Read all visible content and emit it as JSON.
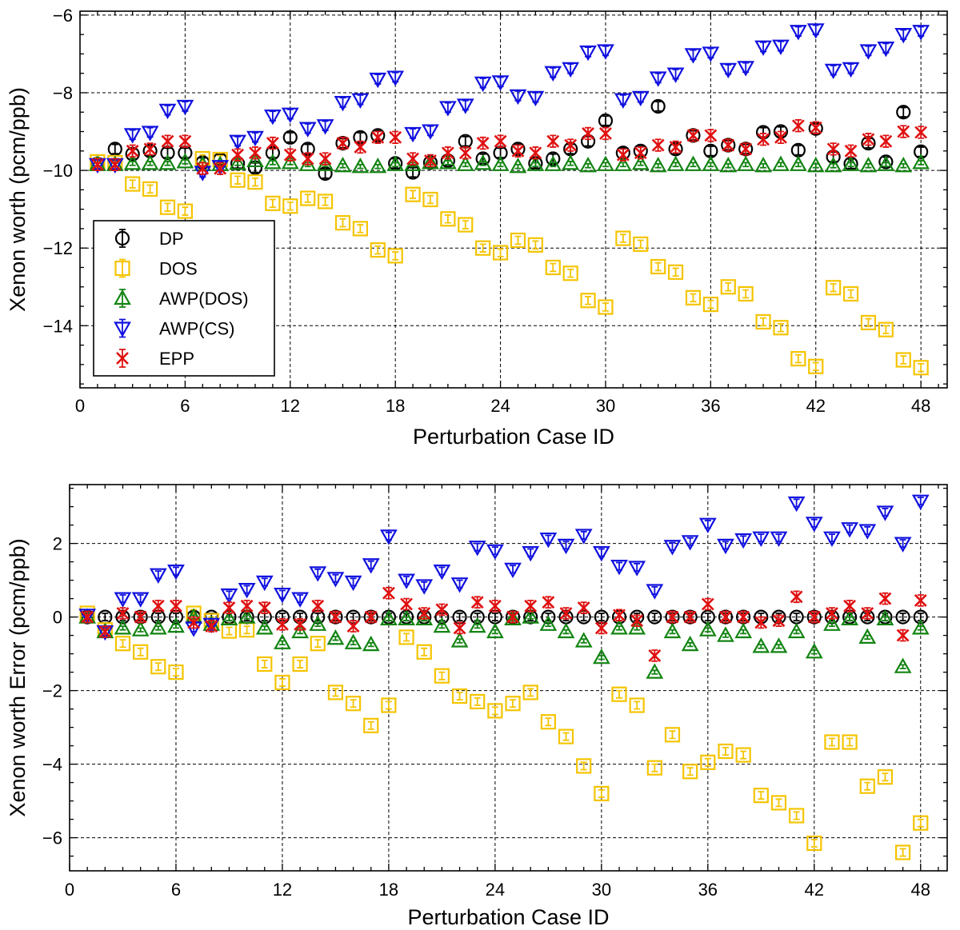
{
  "colors": {
    "DP": "#000000",
    "DOS": "#F5C400",
    "AWP(DOS)": "#128412",
    "AWP(CS)": "#1010E0",
    "EPP": "#E01010"
  },
  "chart_data": [
    {
      "type": "scatter",
      "xlabel": "Perturbation Case ID",
      "ylabel": "Xenon worth (pcm/ppb)",
      "xlim": [
        0,
        49.5
      ],
      "ylim": [
        -15.6,
        -5.9
      ],
      "xticks": [
        0,
        6,
        12,
        18,
        24,
        30,
        36,
        42,
        48
      ],
      "xtick_labels": [
        "0",
        "6",
        "12",
        "18",
        "24",
        "30",
        "36",
        "42",
        "48"
      ],
      "yticks": [
        -14,
        -12,
        -10,
        -8,
        -6
      ],
      "ytick_labels": [
        "−14",
        "−12",
        "−10",
        "−8",
        "−6"
      ],
      "grid": true,
      "legend_position": "lower-left",
      "x": [
        1,
        2,
        3,
        4,
        5,
        6,
        7,
        8,
        9,
        10,
        11,
        12,
        13,
        14,
        15,
        16,
        17,
        18,
        19,
        20,
        21,
        22,
        23,
        24,
        25,
        26,
        27,
        28,
        29,
        30,
        31,
        32,
        33,
        34,
        35,
        36,
        37,
        38,
        39,
        40,
        41,
        42,
        43,
        44,
        45,
        46,
        47,
        48
      ],
      "series": [
        {
          "name": "DP",
          "marker": "circle",
          "error": 0.12,
          "values": [
            -9.83,
            -9.45,
            -9.58,
            -9.5,
            -9.55,
            -9.55,
            -9.8,
            -9.72,
            -9.82,
            -9.93,
            -9.55,
            -9.15,
            -9.45,
            -10.08,
            -9.3,
            -9.15,
            -9.1,
            -9.82,
            -10.05,
            -9.8,
            -9.75,
            -9.25,
            -9.7,
            -9.55,
            -9.45,
            -9.82,
            -9.7,
            -9.45,
            -9.25,
            -8.72,
            -9.55,
            -9.5,
            -8.35,
            -9.45,
            -9.1,
            -9.5,
            -9.35,
            -9.45,
            -9.02,
            -9.0,
            -9.48,
            -8.92,
            -9.65,
            -9.83,
            -9.3,
            -9.78,
            -8.5,
            -9.52
          ]
        },
        {
          "name": "DOS",
          "marker": "square",
          "error": 0.1,
          "values": [
            -9.78,
            -9.8,
            -10.35,
            -10.48,
            -10.95,
            -11.05,
            -9.7,
            -9.72,
            -10.25,
            -10.3,
            -10.85,
            -10.92,
            -10.72,
            -10.8,
            -11.35,
            -11.5,
            -12.05,
            -12.2,
            -10.62,
            -10.75,
            -11.25,
            -11.4,
            -12.0,
            -12.12,
            -11.8,
            -11.92,
            -12.5,
            -12.65,
            -13.35,
            -13.52,
            -11.75,
            -11.9,
            -12.48,
            -12.62,
            -13.28,
            -13.45,
            -13.0,
            -13.18,
            -13.9,
            -14.05,
            -14.85,
            -15.05,
            -13.02,
            -13.18,
            -13.92,
            -14.1,
            -14.88,
            -15.08
          ]
        },
        {
          "name": "AWP(DOS)",
          "marker": "triangle-up",
          "error": 0.05,
          "values": [
            -9.85,
            -9.85,
            -9.82,
            -9.82,
            -9.82,
            -9.78,
            -9.85,
            -9.85,
            -9.82,
            -9.75,
            -9.8,
            -9.8,
            -9.85,
            -9.85,
            -9.88,
            -9.9,
            -9.9,
            -9.85,
            -9.85,
            -9.8,
            -9.8,
            -9.85,
            -9.82,
            -9.85,
            -9.9,
            -9.85,
            -9.85,
            -9.82,
            -9.88,
            -9.85,
            -9.85,
            -9.82,
            -9.88,
            -9.85,
            -9.85,
            -9.85,
            -9.88,
            -9.85,
            -9.88,
            -9.85,
            -9.85,
            -9.88,
            -9.88,
            -9.85,
            -9.88,
            -9.85,
            -9.88,
            -9.8
          ]
        },
        {
          "name": "AWP(CS)",
          "marker": "triangle-down",
          "error": 0.12,
          "values": [
            -9.85,
            -9.85,
            -9.08,
            -9.02,
            -8.45,
            -8.35,
            -10.05,
            -9.9,
            -9.25,
            -9.15,
            -8.6,
            -8.55,
            -8.92,
            -8.85,
            -8.25,
            -8.18,
            -7.65,
            -7.6,
            -9.05,
            -8.98,
            -8.38,
            -8.32,
            -7.75,
            -7.72,
            -8.08,
            -8.12,
            -7.48,
            -7.38,
            -6.95,
            -6.92,
            -8.18,
            -8.12,
            -7.62,
            -7.52,
            -7.02,
            -6.98,
            -7.4,
            -7.35,
            -6.82,
            -6.8,
            -6.42,
            -6.38,
            -7.42,
            -7.38,
            -6.92,
            -6.85,
            -6.5,
            -6.42
          ]
        },
        {
          "name": "EPP",
          "marker": "x",
          "error": 0.15,
          "values": [
            -9.85,
            -9.85,
            -9.5,
            -9.45,
            -9.25,
            -9.25,
            -9.95,
            -9.95,
            -9.6,
            -9.55,
            -9.3,
            -9.6,
            -9.7,
            -9.7,
            -9.3,
            -9.4,
            -9.15,
            -9.15,
            -9.7,
            -9.75,
            -9.55,
            -9.55,
            -9.3,
            -9.25,
            -9.5,
            -9.55,
            -9.25,
            -9.35,
            -9.05,
            -9.05,
            -9.6,
            -9.55,
            -9.35,
            -9.4,
            -9.1,
            -9.1,
            -9.35,
            -9.45,
            -9.2,
            -9.15,
            -8.85,
            -8.9,
            -9.45,
            -9.5,
            -9.2,
            -9.25,
            -9.0,
            -9.02
          ]
        }
      ]
    },
    {
      "type": "scatter",
      "xlabel": "Perturbation Case ID",
      "ylabel": "Xenon worth Error (pcm/ppb)",
      "xlim": [
        0,
        49.5
      ],
      "ylim": [
        -6.9,
        3.6
      ],
      "xticks": [
        0,
        6,
        12,
        18,
        24,
        30,
        36,
        42,
        48
      ],
      "xtick_labels": [
        "0",
        "6",
        "12",
        "18",
        "24",
        "30",
        "36",
        "42",
        "48"
      ],
      "yticks": [
        -6,
        -4,
        -2,
        0,
        2
      ],
      "ytick_labels": [
        "−6",
        "−4",
        "−2",
        "0",
        "2"
      ],
      "grid": true,
      "x": [
        1,
        2,
        3,
        4,
        5,
        6,
        7,
        8,
        9,
        10,
        11,
        12,
        13,
        14,
        15,
        16,
        17,
        18,
        19,
        20,
        21,
        22,
        23,
        24,
        25,
        26,
        27,
        28,
        29,
        30,
        31,
        32,
        33,
        34,
        35,
        36,
        37,
        38,
        39,
        40,
        41,
        42,
        43,
        44,
        45,
        46,
        47,
        48
      ],
      "series": [
        {
          "name": "DP",
          "marker": "circle",
          "error": 0.1,
          "values": [
            0.0,
            0.0,
            0.0,
            0.0,
            0.0,
            0.0,
            0.0,
            0.0,
            0.0,
            0.0,
            0.0,
            0.0,
            0.0,
            0.0,
            0.0,
            0.0,
            0.0,
            0.0,
            0.0,
            0.0,
            0.0,
            0.0,
            0.0,
            0.0,
            0.0,
            0.0,
            0.0,
            0.0,
            0.0,
            0.0,
            0.0,
            0.0,
            0.0,
            0.0,
            0.0,
            0.0,
            0.0,
            0.0,
            0.0,
            0.0,
            0.0,
            0.0,
            0.0,
            0.0,
            0.0,
            0.0,
            0.0,
            0.0
          ]
        },
        {
          "name": "DOS",
          "marker": "square",
          "error": 0.1,
          "values": [
            0.1,
            -0.35,
            -0.72,
            -0.95,
            -1.35,
            -1.5,
            0.1,
            -0.1,
            -0.38,
            -0.35,
            -1.28,
            -1.78,
            -1.28,
            -0.72,
            -2.05,
            -2.35,
            -2.95,
            -2.4,
            -0.55,
            -0.95,
            -1.6,
            -2.15,
            -2.3,
            -2.55,
            -2.35,
            -2.05,
            -2.85,
            -3.25,
            -4.05,
            -4.8,
            -2.1,
            -2.4,
            -4.1,
            -3.2,
            -4.2,
            -3.95,
            -3.65,
            -3.75,
            -4.85,
            -5.05,
            -5.4,
            -6.15,
            -3.4,
            -3.4,
            -4.6,
            -4.35,
            -6.4,
            -5.6
          ]
        },
        {
          "name": "AWP(DOS)",
          "marker": "triangle-up",
          "error": 0.05,
          "values": [
            0.0,
            -0.4,
            -0.3,
            -0.35,
            -0.3,
            -0.25,
            0.0,
            -0.2,
            -0.05,
            0.0,
            -0.3,
            -0.7,
            -0.4,
            -0.2,
            -0.58,
            -0.7,
            -0.75,
            -0.05,
            -0.05,
            -0.05,
            -0.25,
            -0.65,
            -0.25,
            -0.4,
            -0.05,
            0.0,
            -0.2,
            -0.4,
            -0.65,
            -1.1,
            -0.3,
            -0.3,
            -1.5,
            -0.4,
            -0.75,
            -0.35,
            -0.5,
            -0.4,
            -0.8,
            -0.8,
            -0.4,
            -0.95,
            -0.2,
            -0.05,
            -0.55,
            -0.05,
            -1.35,
            -0.3
          ]
        },
        {
          "name": "AWP(CS)",
          "marker": "triangle-down",
          "error": 0.1,
          "values": [
            0.05,
            -0.4,
            0.5,
            0.5,
            1.15,
            1.25,
            -0.3,
            -0.2,
            0.6,
            0.75,
            0.95,
            0.62,
            0.5,
            1.2,
            1.05,
            0.95,
            1.42,
            2.2,
            1.0,
            0.85,
            1.25,
            0.9,
            1.9,
            1.8,
            1.3,
            1.75,
            2.12,
            1.95,
            2.22,
            1.75,
            1.38,
            1.35,
            0.72,
            1.92,
            2.05,
            2.52,
            1.95,
            2.1,
            2.15,
            2.15,
            3.1,
            2.55,
            2.15,
            2.4,
            2.35,
            2.85,
            2.0,
            3.15
          ]
        },
        {
          "name": "EPP",
          "marker": "x",
          "error": 0.15,
          "values": [
            0.0,
            -0.4,
            0.1,
            0.0,
            0.3,
            0.3,
            -0.15,
            -0.25,
            0.25,
            0.3,
            0.25,
            -0.2,
            -0.2,
            0.3,
            0.0,
            -0.25,
            0.0,
            0.65,
            0.35,
            0.1,
            0.2,
            -0.3,
            0.4,
            0.3,
            0.0,
            0.3,
            0.4,
            0.1,
            0.25,
            -0.3,
            0.05,
            -0.1,
            -1.05,
            0.0,
            0.0,
            0.35,
            0.0,
            0.0,
            -0.15,
            -0.1,
            0.55,
            0.0,
            0.1,
            0.3,
            0.1,
            0.5,
            -0.5,
            0.45
          ]
        }
      ]
    }
  ]
}
